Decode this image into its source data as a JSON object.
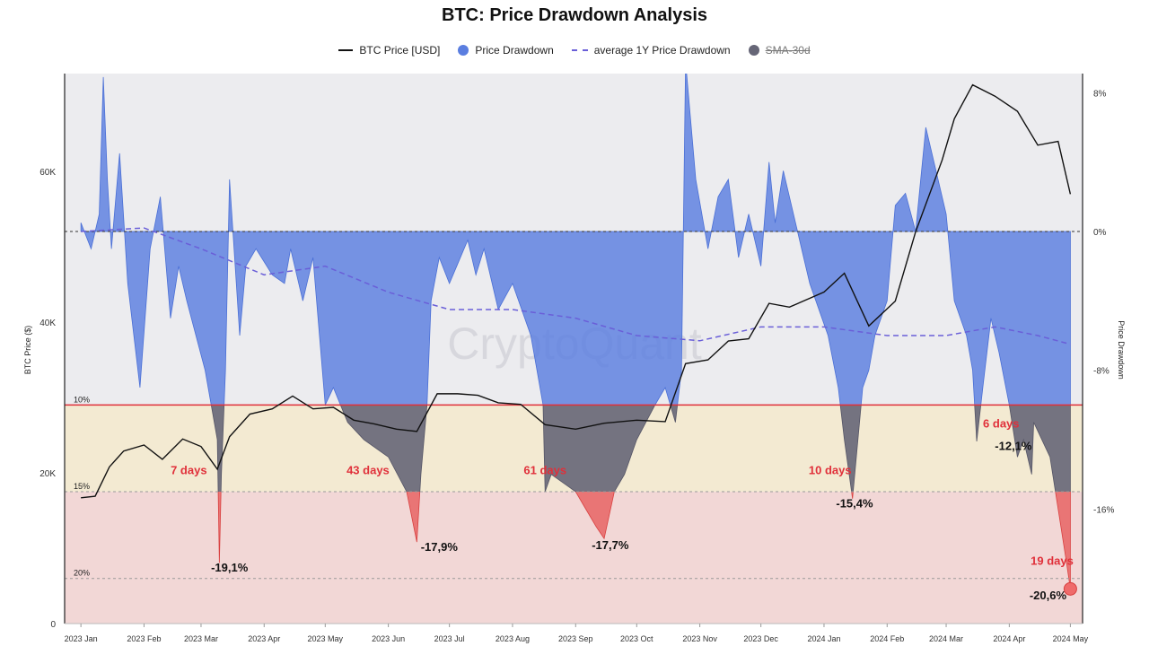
{
  "chart_data": {
    "type": "line",
    "title": "BTC: Price Drawdown Analysis",
    "watermark": "CryptoQuant",
    "legend": [
      {
        "label": "BTC Price [USD]",
        "color": "#111111",
        "kind": "line"
      },
      {
        "label": "Price Drawdown",
        "color": "#5a7ee0",
        "kind": "dot"
      },
      {
        "label": "average 1Y Price Drawdown",
        "color": "#6a5fd8",
        "kind": "dash"
      },
      {
        "label": "SMA-30d",
        "color": "#666677",
        "kind": "dot",
        "disabled": true
      }
    ],
    "ylabel_left": "BTC Price ($)",
    "ylabel_right": "Price Drawdown",
    "y_left_ticks": [
      {
        "v": 0,
        "label": "0"
      },
      {
        "v": 20000,
        "label": "20K"
      },
      {
        "v": 40000,
        "label": "40K"
      },
      {
        "v": 60000,
        "label": "60K"
      }
    ],
    "y_right_ticks": [
      {
        "v": 8,
        "label": "8%"
      },
      {
        "v": 0,
        "label": "0%"
      },
      {
        "v": -8,
        "label": "-8%"
      },
      {
        "v": -16,
        "label": "-16%"
      }
    ],
    "x_ticks": [
      "2023 Jan",
      "2023 Feb",
      "2023 Mar",
      "2023 Apr",
      "2023 May",
      "2023 Jun",
      "2023 Jul",
      "2023 Aug",
      "2023 Sep",
      "2023 Oct",
      "2023 Nov",
      "2023 Dec",
      "2024 Jan",
      "2024 Feb",
      "2024 Mar",
      "2024 Apr",
      "2024 May"
    ],
    "y_left_range": [
      0,
      73000
    ],
    "y_right_range": [
      -22.6,
      9.1
    ],
    "thresholds": [
      {
        "label": "10%",
        "value": -10
      },
      {
        "label": "15%",
        "value": -15
      },
      {
        "label": "20%",
        "value": -20
      }
    ],
    "colors": {
      "drawdown": "#5a7ee0",
      "sma": "#666677",
      "alert": "#e0303a",
      "band_yellow": "#f3ead2",
      "band_red": "#f2d7d6",
      "plot_bg": "#ececef",
      "avg": "#6a5fd8"
    },
    "btc_price": {
      "x": [
        "2023-01-01",
        "2023-01-08",
        "2023-01-15",
        "2023-01-22",
        "2023-02-01",
        "2023-02-10",
        "2023-02-20",
        "2023-03-01",
        "2023-03-09",
        "2023-03-15",
        "2023-03-25",
        "2023-04-05",
        "2023-04-15",
        "2023-04-25",
        "2023-05-05",
        "2023-05-15",
        "2023-05-25",
        "2023-06-05",
        "2023-06-15",
        "2023-06-25",
        "2023-07-05",
        "2023-07-15",
        "2023-07-25",
        "2023-08-05",
        "2023-08-17",
        "2023-09-01",
        "2023-09-15",
        "2023-10-01",
        "2023-10-15",
        "2023-10-25",
        "2023-11-05",
        "2023-11-15",
        "2023-11-25",
        "2023-12-05",
        "2023-12-15",
        "2024-01-01",
        "2024-01-11",
        "2024-01-23",
        "2024-02-05",
        "2024-02-15",
        "2024-02-28",
        "2024-03-05",
        "2024-03-14",
        "2024-03-25",
        "2024-04-05",
        "2024-04-15",
        "2024-04-25",
        "2024-05-01"
      ],
      "y": [
        16700,
        16900,
        20800,
        22900,
        23700,
        21800,
        24500,
        23500,
        20500,
        24800,
        27800,
        28500,
        30200,
        28500,
        28700,
        27000,
        26500,
        25800,
        25500,
        30500,
        30500,
        30300,
        29300,
        29100,
        26400,
        25800,
        26600,
        27000,
        26800,
        34500,
        35000,
        37500,
        37800,
        42500,
        42000,
        44000,
        46500,
        39500,
        42800,
        52000,
        61500,
        67000,
        71500,
        70000,
        68000,
        63500,
        64000,
        57000
      ]
    },
    "price_drawdown": {
      "x": [
        "2023-01-01",
        "2023-01-06",
        "2023-01-10",
        "2023-01-12",
        "2023-01-14",
        "2023-01-16",
        "2023-01-20",
        "2023-01-24",
        "2023-01-30",
        "2023-02-04",
        "2023-02-09",
        "2023-02-14",
        "2023-02-18",
        "2023-02-22",
        "2023-03-03",
        "2023-03-09",
        "2023-03-10",
        "2023-03-11",
        "2023-03-13",
        "2023-03-15",
        "2023-03-20",
        "2023-03-23",
        "2023-03-28",
        "2023-04-05",
        "2023-04-11",
        "2023-04-14",
        "2023-04-20",
        "2023-04-25",
        "2023-05-01",
        "2023-05-05",
        "2023-05-12",
        "2023-05-20",
        "2023-06-01",
        "2023-06-10",
        "2023-06-15",
        "2023-06-17",
        "2023-06-20",
        "2023-06-22",
        "2023-06-26",
        "2023-07-01",
        "2023-07-10",
        "2023-07-14",
        "2023-07-18",
        "2023-07-25",
        "2023-08-01",
        "2023-08-10",
        "2023-08-16",
        "2023-08-17",
        "2023-08-20",
        "2023-09-01",
        "2023-09-06",
        "2023-09-11",
        "2023-09-15",
        "2023-09-20",
        "2023-09-25",
        "2023-10-01",
        "2023-10-10",
        "2023-10-15",
        "2023-10-20",
        "2023-10-23",
        "2023-10-25",
        "2023-10-30",
        "2023-11-05",
        "2023-11-10",
        "2023-11-15",
        "2023-11-20",
        "2023-11-25",
        "2023-12-01",
        "2023-12-05",
        "2023-12-08",
        "2023-12-12",
        "2023-12-18",
        "2023-12-25",
        "2024-01-03",
        "2024-01-08",
        "2024-01-11",
        "2024-01-15",
        "2024-01-20",
        "2024-01-23",
        "2024-01-26",
        "2024-02-01",
        "2024-02-05",
        "2024-02-10",
        "2024-02-15",
        "2024-02-20",
        "2024-02-26",
        "2024-03-01",
        "2024-03-05",
        "2024-03-11",
        "2024-03-14",
        "2024-03-16",
        "2024-03-19",
        "2024-03-23",
        "2024-03-27",
        "2024-04-01",
        "2024-04-05",
        "2024-04-08",
        "2024-04-12",
        "2024-04-13",
        "2024-04-17",
        "2024-04-21",
        "2024-04-25",
        "2024-04-29",
        "2024-05-01"
      ],
      "y": [
        0.5,
        -1.0,
        1.0,
        8.9,
        3.0,
        -1.0,
        4.5,
        -3.0,
        -9.0,
        -1.0,
        2.0,
        -5.0,
        -2.0,
        -4.0,
        -8.0,
        -12.0,
        -19.1,
        -14.0,
        -8.0,
        3.0,
        -6.0,
        -2.0,
        -1.0,
        -2.5,
        -3.0,
        -1.0,
        -4.0,
        -1.5,
        -10.0,
        -9.0,
        -11.0,
        -12.0,
        -13.0,
        -15.0,
        -17.9,
        -14.0,
        -10.0,
        -4.0,
        -1.5,
        -3.0,
        -0.5,
        -2.5,
        -1.0,
        -4.5,
        -3.0,
        -6.0,
        -10.0,
        -15.0,
        -14.0,
        -15.0,
        -16.0,
        -17.0,
        -17.7,
        -15.0,
        -14.0,
        -12.0,
        -10.0,
        -9.0,
        -11.0,
        -8.0,
        9.8,
        3.0,
        -1.0,
        2.0,
        3.0,
        -1.5,
        1.0,
        -2.0,
        4.0,
        0.5,
        3.5,
        0.5,
        -3.0,
        -6.0,
        -9.0,
        -12.0,
        -15.4,
        -9.0,
        -8.0,
        -6.0,
        -4.0,
        1.5,
        2.2,
        0.0,
        6.0,
        3.0,
        1.0,
        -4.0,
        -6.0,
        -8.0,
        -12.1,
        -9.0,
        -5.0,
        -7.0,
        -10.0,
        -13.0,
        -12.0,
        -14.0,
        -11.0,
        -12.0,
        -13.0,
        -16.0,
        -19.0,
        -20.6
      ]
    },
    "average_1y_drawdown": {
      "x": [
        "2023-01-01",
        "2023-02-01",
        "2023-03-01",
        "2023-04-01",
        "2023-05-01",
        "2023-06-01",
        "2023-07-01",
        "2023-08-01",
        "2023-09-01",
        "2023-10-01",
        "2023-11-01",
        "2023-12-01",
        "2024-01-01",
        "2024-02-01",
        "2024-03-01",
        "2024-03-25",
        "2024-04-15",
        "2024-05-01"
      ],
      "y": [
        0.0,
        0.2,
        -1.0,
        -2.5,
        -2.0,
        -3.5,
        -4.5,
        -4.5,
        -5.0,
        -6.0,
        -6.3,
        -5.5,
        -5.5,
        -6.0,
        -6.0,
        -5.5,
        -6.0,
        -6.5
      ]
    },
    "annotations": {
      "days": [
        {
          "text": "7 days",
          "x": "2023-02-23",
          "y": -14
        },
        {
          "text": "43 days",
          "x": "2023-05-22",
          "y": -14
        },
        {
          "text": "61 days",
          "x": "2023-08-17",
          "y": -14
        },
        {
          "text": "10 days",
          "x": "2024-01-04",
          "y": -14
        },
        {
          "text": "6 days",
          "x": "2024-03-28",
          "y": -11.3
        },
        {
          "text": "19 days",
          "x": "2024-04-22",
          "y": -19.2
        }
      ],
      "drawdowns": [
        {
          "text": "-19,1%",
          "x": "2023-03-15",
          "y": -19.6
        },
        {
          "text": "-17,9%",
          "x": "2023-06-26",
          "y": -18.4
        },
        {
          "text": "-17,7%",
          "x": "2023-09-18",
          "y": -18.3
        },
        {
          "text": "-15,4%",
          "x": "2024-01-16",
          "y": -15.9
        },
        {
          "text": "-12,1%",
          "x": "2024-04-03",
          "y": -12.6
        },
        {
          "text": "-20,6%",
          "x": "2024-04-20",
          "y": -21.2
        }
      ]
    }
  }
}
